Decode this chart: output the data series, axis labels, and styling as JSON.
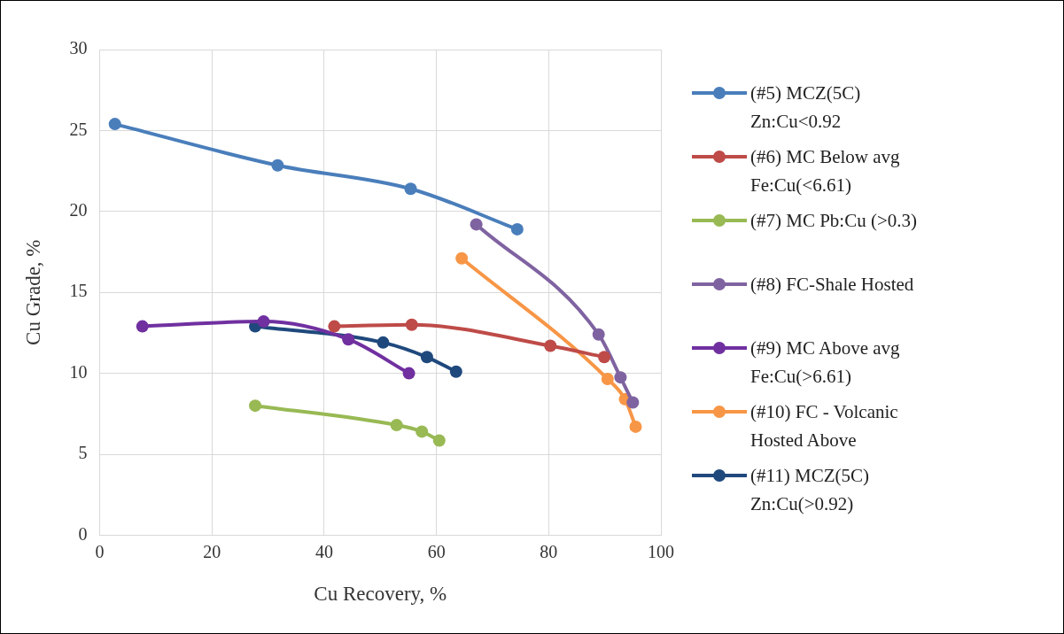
{
  "chart_data": {
    "type": "line",
    "xlabel": "Cu Recovery, %",
    "ylabel": "Cu Grade, %",
    "xlim": [
      0,
      100
    ],
    "xticks": [
      0,
      20,
      40,
      60,
      80,
      100
    ],
    "ylim": [
      0,
      30
    ],
    "yticks": [
      0,
      5,
      10,
      15,
      20,
      25,
      30
    ],
    "grid": true,
    "legend": "right",
    "marker": "circle",
    "line_style": "solid",
    "series": [
      {
        "name": "(#5) MCZ(5C) Zn:Cu<0.92",
        "color": "#4a7ebb",
        "x": [
          2.7,
          31.7,
          55.4,
          74.4
        ],
        "values": [
          25.4,
          22.85,
          21.4,
          18.9
        ]
      },
      {
        "name": "(#6) MC Below avg Fe:Cu(<6.61)",
        "color": "#be4b48",
        "x": [
          41.8,
          55.6,
          80.3,
          89.9
        ],
        "values": [
          12.9,
          13.0,
          11.7,
          11.0
        ]
      },
      {
        "name": "(#7) MC Pb:Cu (>0.3)",
        "color": "#98b954",
        "x": [
          27.7,
          52.9,
          57.4,
          60.5
        ],
        "values": [
          8.0,
          6.8,
          6.4,
          5.85
        ]
      },
      {
        "name": "(#8) FC-Shale Hosted",
        "color": "#7f63a1",
        "x": [
          67.1,
          88.9,
          92.8,
          95.0
        ],
        "values": [
          19.2,
          12.4,
          9.75,
          8.2
        ]
      },
      {
        "name": "(#9) MC Above avg Fe:Cu(>6.61)",
        "color": "#7030a0",
        "x": [
          7.6,
          29.2,
          44.3,
          55.1
        ],
        "values": [
          12.9,
          13.2,
          12.1,
          10.0
        ]
      },
      {
        "name": "(#10) FC - Volcanic Hosted Above",
        "color": "#f79646",
        "x": [
          64.5,
          90.5,
          93.6,
          95.5
        ],
        "values": [
          17.1,
          9.65,
          8.4,
          6.7
        ]
      },
      {
        "name": "(#11) MCZ(5C) Zn:Cu(>0.92)",
        "color": "#1f497d",
        "x": [
          27.7,
          50.5,
          58.3,
          63.5
        ],
        "values": [
          12.9,
          11.9,
          11.0,
          10.1
        ]
      }
    ]
  }
}
